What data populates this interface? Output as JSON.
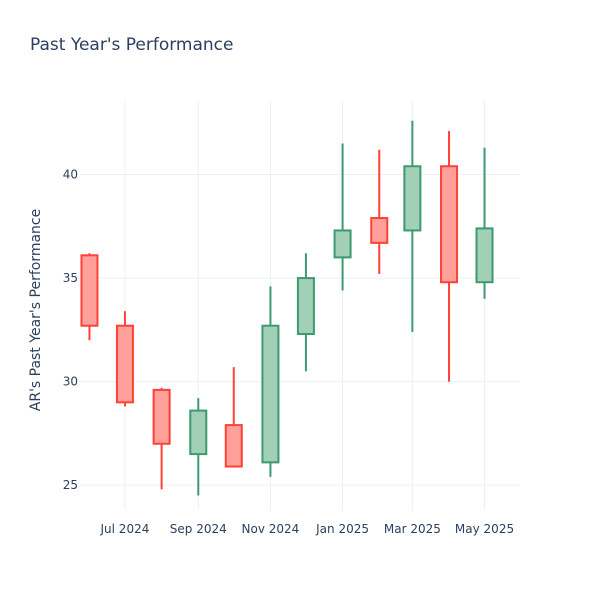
{
  "chart_data": {
    "type": "candlestick",
    "title": "Past Year's Performance",
    "xlabel": "",
    "ylabel": "AR's Past Year's Performance",
    "ylim": [
      23.8,
      43.6
    ],
    "yticks": [
      25,
      30,
      35,
      40
    ],
    "xticks": [
      {
        "label": "Jul 2024",
        "date": "2024-07-01"
      },
      {
        "label": "Sep 2024",
        "date": "2024-09-01"
      },
      {
        "label": "Nov 2024",
        "date": "2024-11-01"
      },
      {
        "label": "Jan 2025",
        "date": "2025-01-01"
      },
      {
        "label": "Mar 2025",
        "date": "2025-03-01"
      },
      {
        "label": "May 2025",
        "date": "2025-05-01"
      }
    ],
    "xrange": [
      "2024-05-24",
      "2025-05-31"
    ],
    "grid": true,
    "legend": false,
    "colors": {
      "increasing_fill": "#a1d0b7",
      "increasing_line": "#3d9970",
      "decreasing_fill": "#ffa09b",
      "decreasing_line": "#ff4136"
    },
    "candles": [
      {
        "date": "2024-06-01",
        "open": 36.1,
        "high": 36.2,
        "low": 32.0,
        "close": 32.7
      },
      {
        "date": "2024-07-01",
        "open": 32.7,
        "high": 33.4,
        "low": 28.8,
        "close": 29.0
      },
      {
        "date": "2024-08-01",
        "open": 29.6,
        "high": 29.7,
        "low": 24.8,
        "close": 27.0
      },
      {
        "date": "2024-09-01",
        "open": 26.5,
        "high": 29.2,
        "low": 24.5,
        "close": 28.6
      },
      {
        "date": "2024-10-01",
        "open": 27.9,
        "high": 30.7,
        "low": 25.9,
        "close": 25.9
      },
      {
        "date": "2024-11-01",
        "open": 26.1,
        "high": 34.6,
        "low": 25.4,
        "close": 32.7
      },
      {
        "date": "2024-12-01",
        "open": 32.3,
        "high": 36.2,
        "low": 30.5,
        "close": 35.0
      },
      {
        "date": "2025-01-01",
        "open": 36.0,
        "high": 41.5,
        "low": 34.4,
        "close": 37.3
      },
      {
        "date": "2025-02-01",
        "open": 37.9,
        "high": 41.2,
        "low": 35.2,
        "close": 36.7
      },
      {
        "date": "2025-03-01",
        "open": 37.3,
        "high": 42.6,
        "low": 32.4,
        "close": 40.4
      },
      {
        "date": "2025-04-01",
        "open": 40.4,
        "high": 42.1,
        "low": 30.0,
        "close": 34.8
      },
      {
        "date": "2025-05-01",
        "open": 34.8,
        "high": 41.3,
        "low": 34.0,
        "close": 37.4
      }
    ]
  }
}
